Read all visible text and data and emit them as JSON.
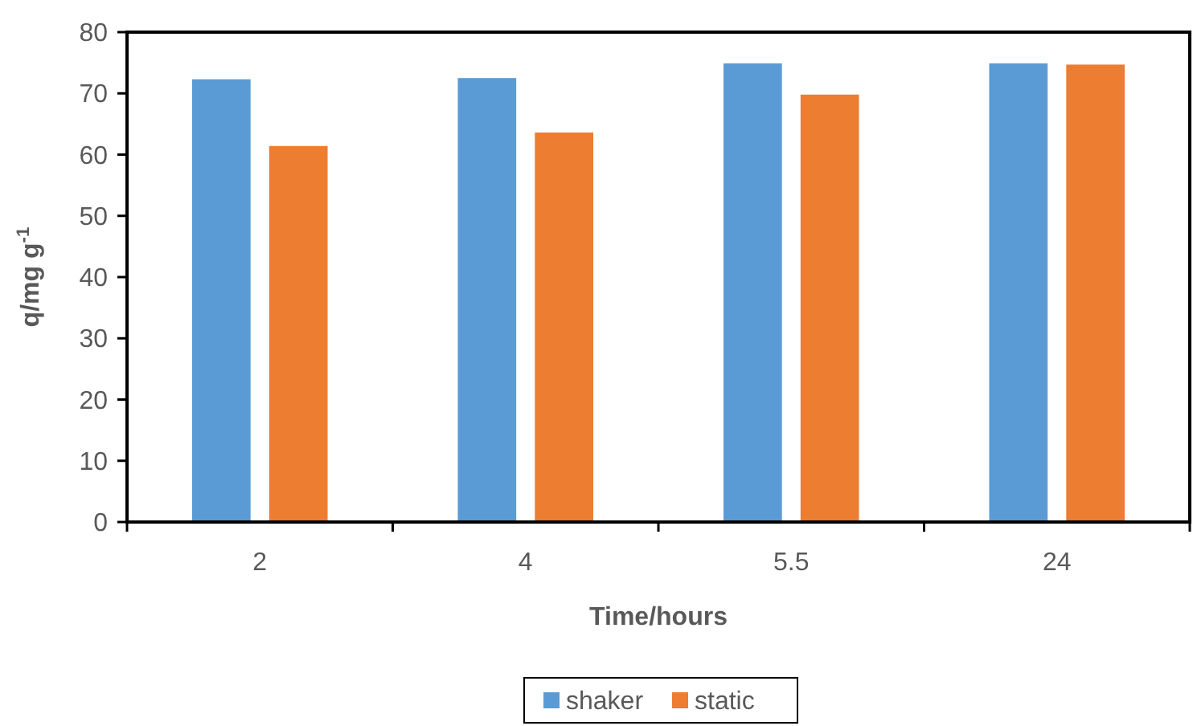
{
  "chart_data": {
    "type": "bar",
    "xlabel": "Time/hours",
    "ylabel": "q/mg g$^{-1}$",
    "categories": [
      "2",
      "4",
      "5.5",
      "24"
    ],
    "series": [
      {
        "name": "shaker",
        "color": "#5b9bd5",
        "values": [
          72.3,
          72.5,
          74.9,
          74.9
        ]
      },
      {
        "name": "static",
        "color": "#ed7d31",
        "values": [
          61.4,
          63.6,
          69.8,
          74.7
        ]
      }
    ],
    "ylim": [
      0,
      80
    ],
    "yticks": [
      0,
      10,
      20,
      30,
      40,
      50,
      60,
      70,
      80
    ],
    "grid": false,
    "legend": "bottom"
  }
}
